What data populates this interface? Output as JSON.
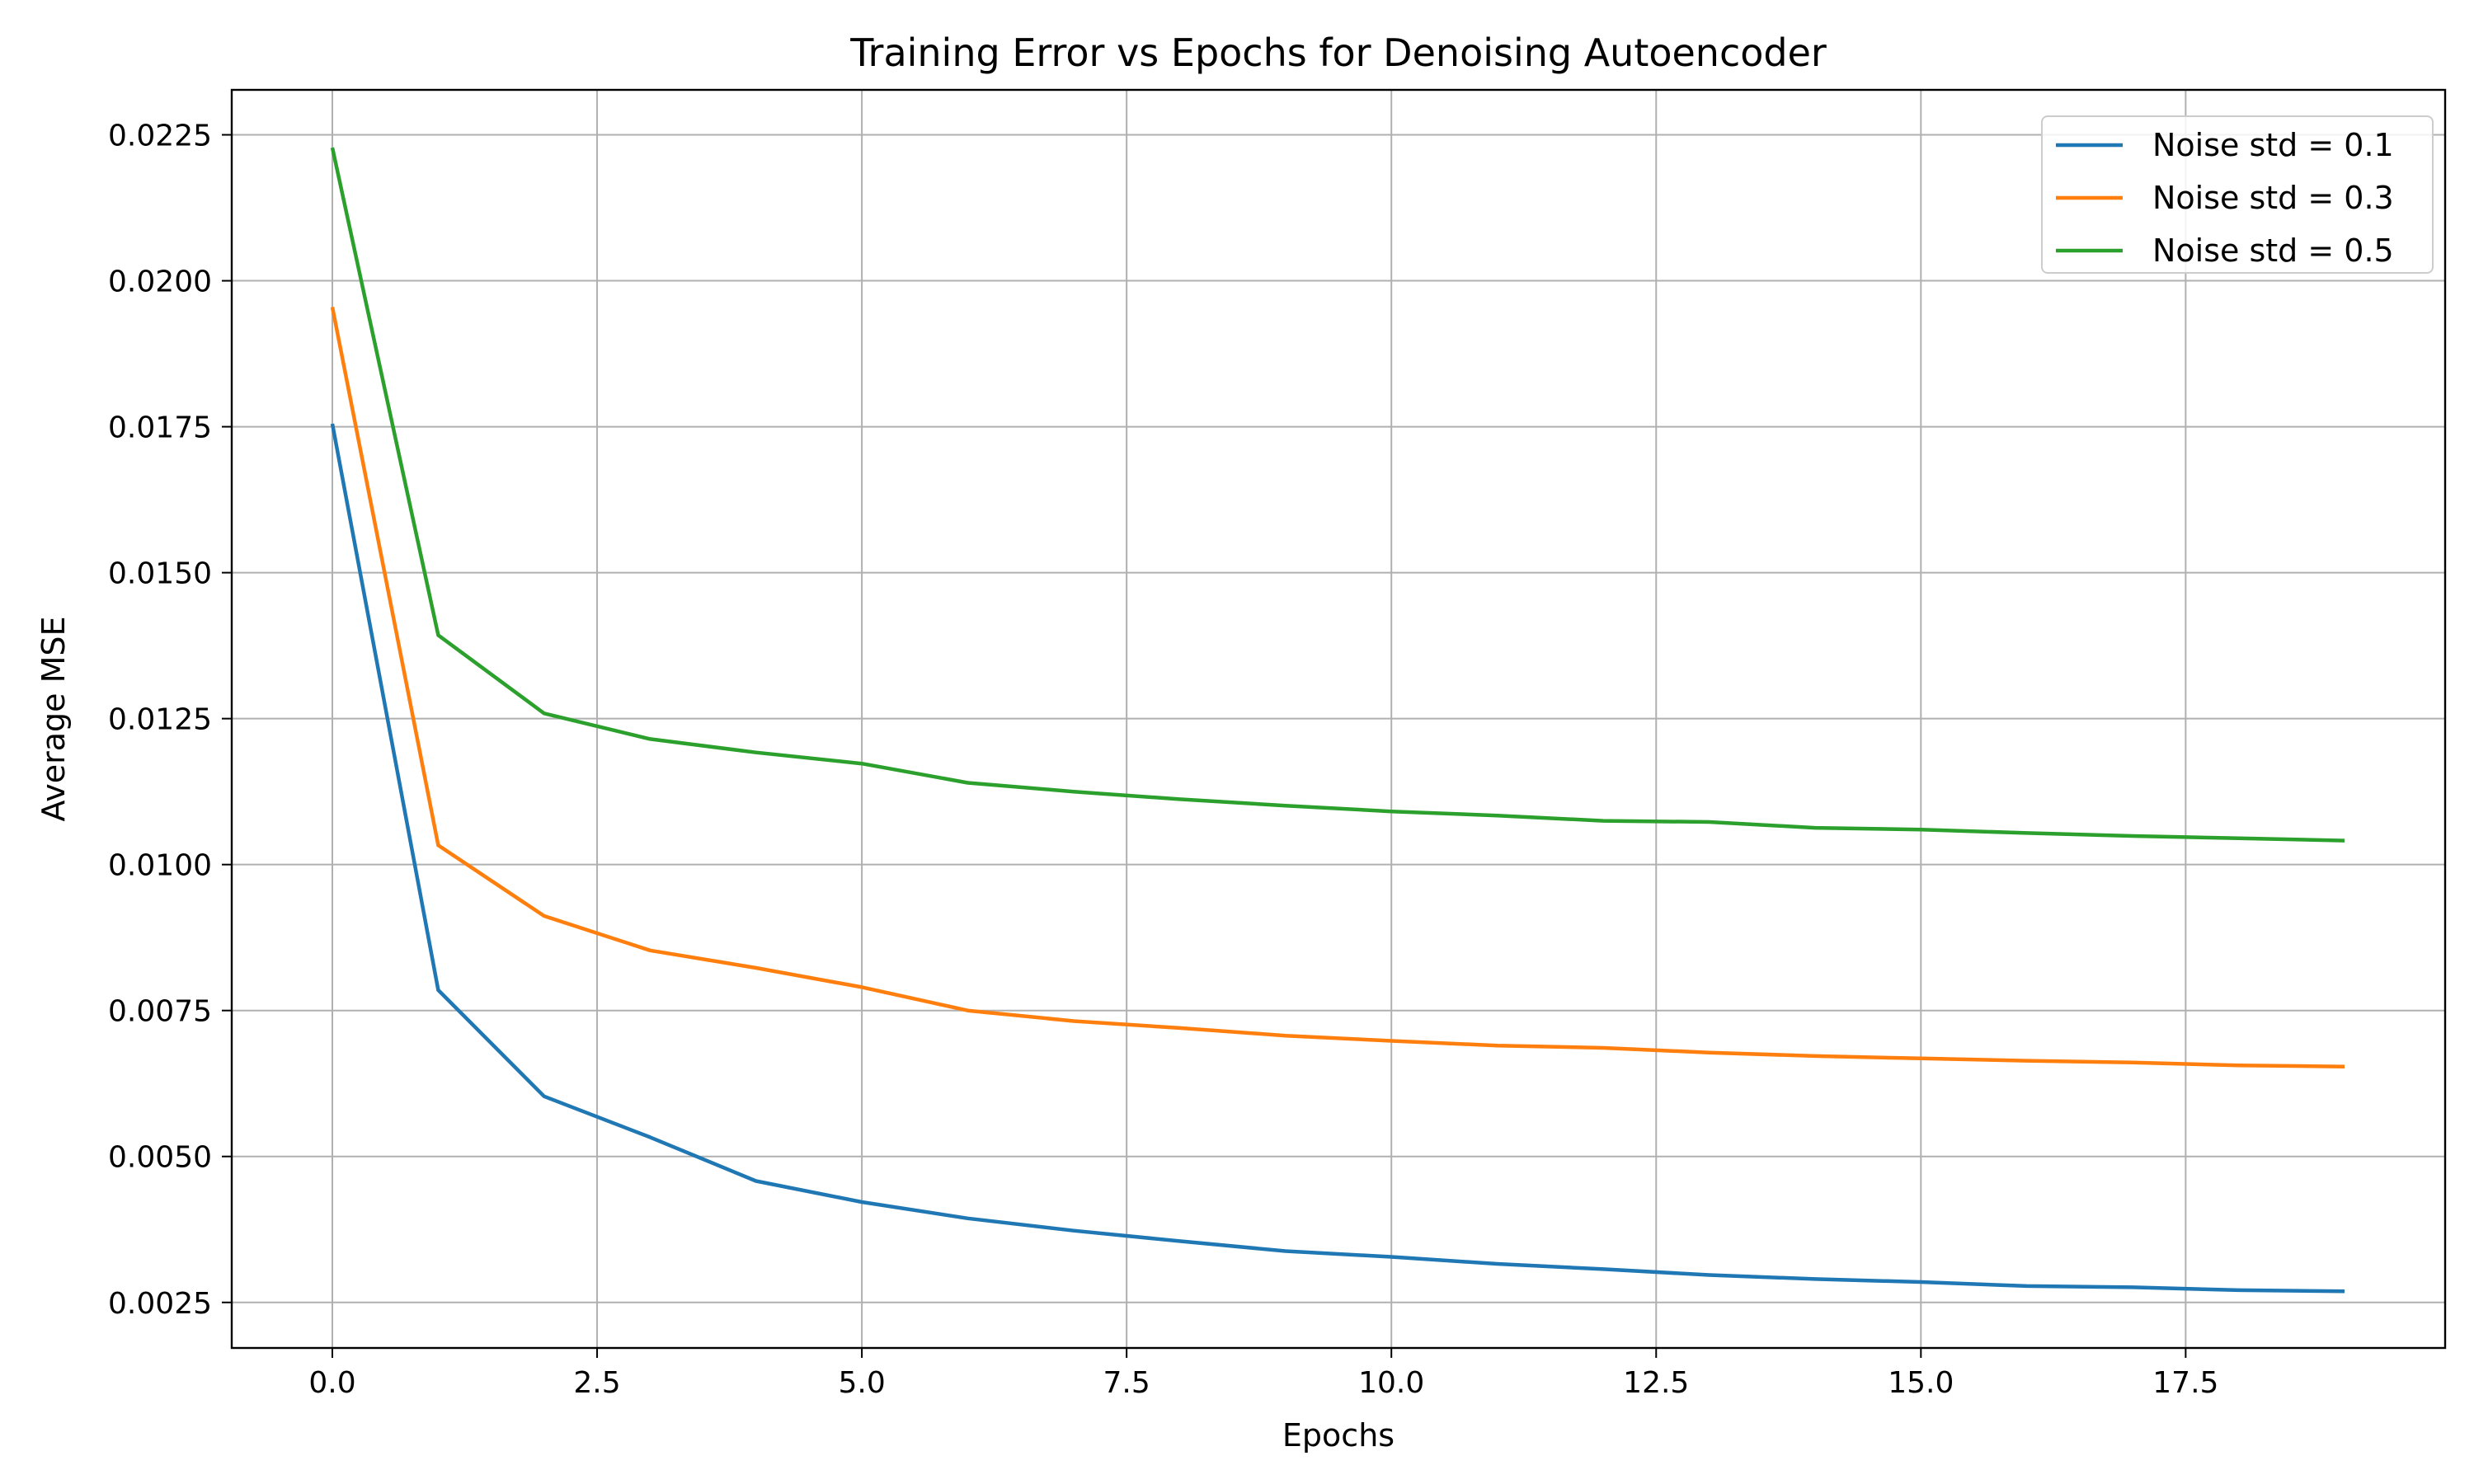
{
  "chart_data": {
    "type": "line",
    "title": "Training Error vs Epochs for Denoising Autoencoder",
    "xlabel": "Epochs",
    "ylabel": "Average MSE",
    "xlim": [
      -0.95,
      19.95
    ],
    "ylim": [
      0.00172,
      0.02327
    ],
    "xticks": [
      0.0,
      2.5,
      5.0,
      7.5,
      10.0,
      12.5,
      15.0,
      17.5
    ],
    "xtick_labels": [
      "0.0",
      "2.5",
      "5.0",
      "7.5",
      "10.0",
      "12.5",
      "15.0",
      "17.5"
    ],
    "yticks": [
      0.0025,
      0.005,
      0.0075,
      0.01,
      0.0125,
      0.015,
      0.0175,
      0.02,
      0.0225
    ],
    "ytick_labels": [
      "0.0025",
      "0.0050",
      "0.0075",
      "0.0100",
      "0.0125",
      "0.0150",
      "0.0175",
      "0.0200",
      "0.0225"
    ],
    "grid": true,
    "legend_position": "top-right",
    "x": [
      0,
      1,
      2,
      3,
      4,
      5,
      6,
      7,
      8,
      9,
      10,
      11,
      12,
      13,
      14,
      15,
      16,
      17,
      18,
      19
    ],
    "series": [
      {
        "name": "Noise std = 0.1",
        "color": "#1f77b4",
        "values": [
          0.01755,
          0.00785,
          0.00603,
          0.00533,
          0.00458,
          0.00422,
          0.00394,
          0.00373,
          0.00355,
          0.00338,
          0.00328,
          0.00316,
          0.00307,
          0.00297,
          0.0029,
          0.00285,
          0.00278,
          0.00276,
          0.00271,
          0.00269
        ]
      },
      {
        "name": "Noise std = 0.3",
        "color": "#ff7f0e",
        "values": [
          0.01955,
          0.01033,
          0.00912,
          0.00853,
          0.00823,
          0.0079,
          0.0075,
          0.00732,
          0.0072,
          0.00707,
          0.00698,
          0.0069,
          0.00686,
          0.00678,
          0.00672,
          0.00668,
          0.00664,
          0.00661,
          0.00656,
          0.00654
        ]
      },
      {
        "name": "Noise std = 0.5",
        "color": "#2ca02c",
        "values": [
          0.02228,
          0.01393,
          0.01259,
          0.01215,
          0.01192,
          0.01173,
          0.0114,
          0.01125,
          0.01112,
          0.01101,
          0.01091,
          0.01084,
          0.01075,
          0.01073,
          0.01063,
          0.0106,
          0.01054,
          0.01049,
          0.01045,
          0.01041
        ]
      }
    ]
  }
}
